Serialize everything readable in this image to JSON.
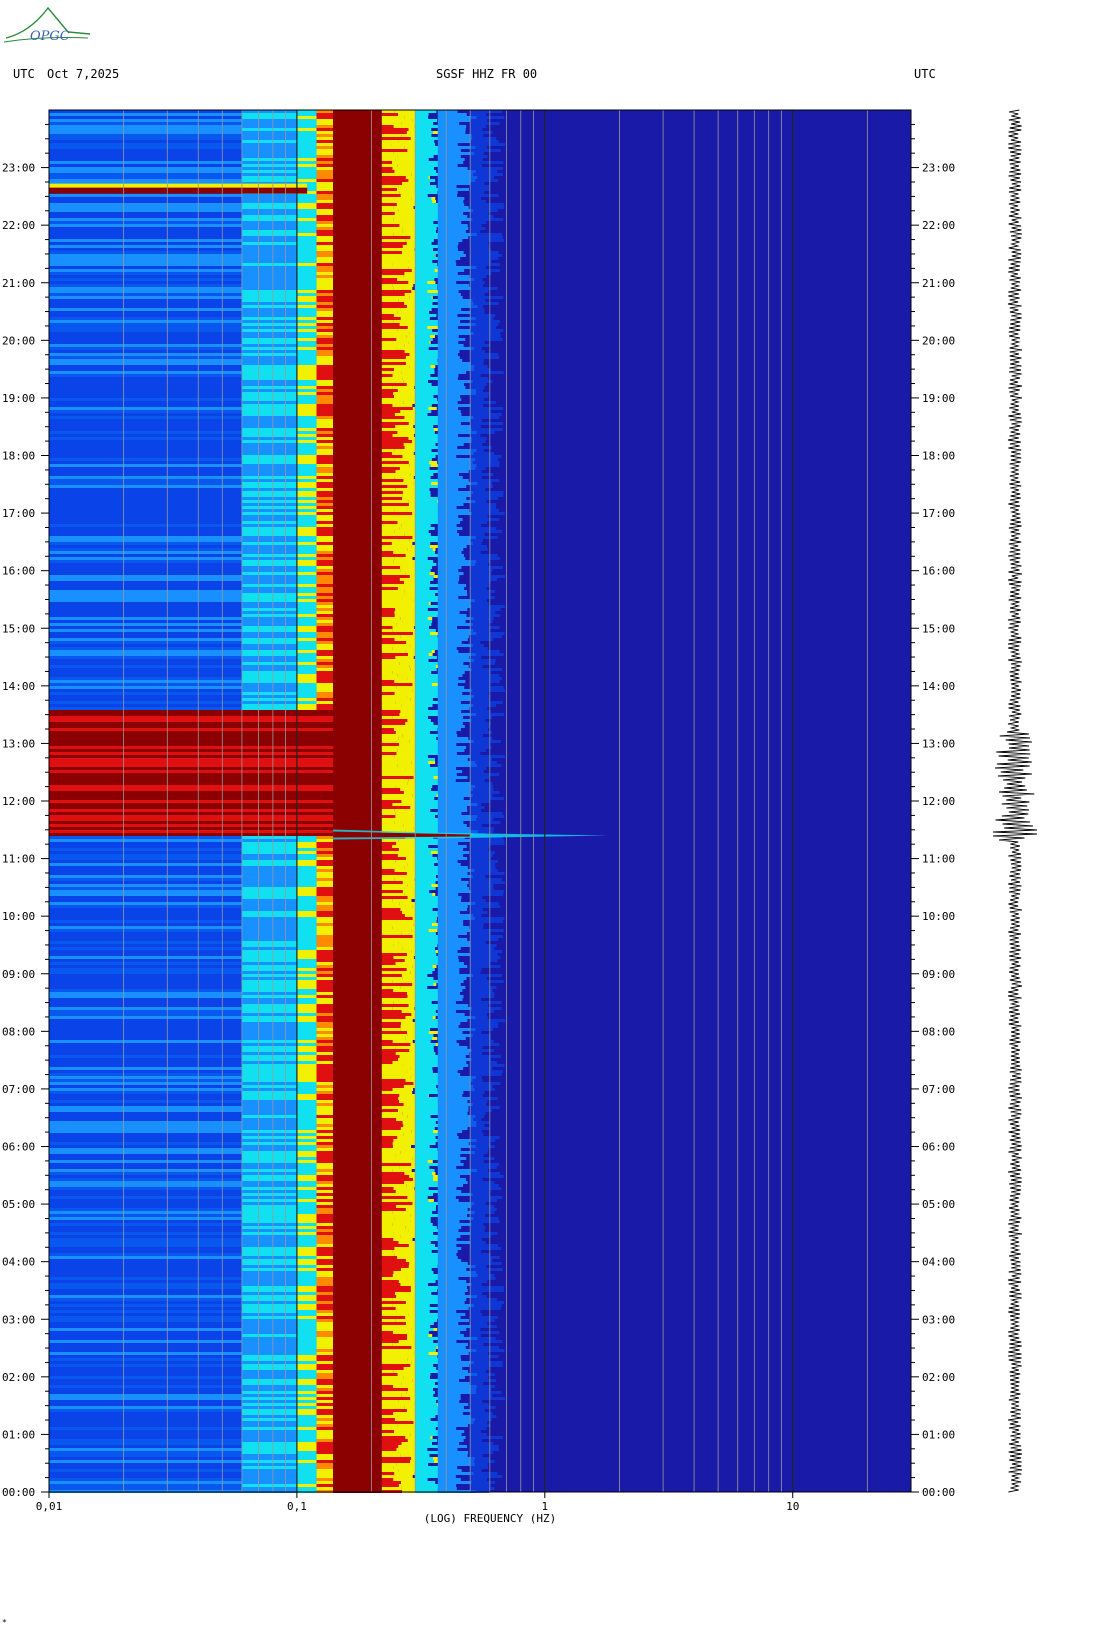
{
  "header": {
    "left_label": "UTC",
    "date": "Oct 7,2025",
    "station": "SGSF HHZ FR 00",
    "right_label": "UTC"
  },
  "logo": {
    "text": "OPGC"
  },
  "footer_mark": "*",
  "colors": {
    "background_blue": "#1a1aa8",
    "deep_red": "#8b0000",
    "red": "#e01010",
    "yellow": "#f0f000",
    "cyan": "#10e0f0",
    "light_blue": "#1890ff",
    "blue": "#0a44e8"
  },
  "chart_data": {
    "type": "heatmap",
    "title": "SGSF HHZ FR 00",
    "xlabel": "(LOG) FREQUENCY (HZ)",
    "ylabel": "UTC",
    "x_scale": "log",
    "x_range": [
      0.01,
      30
    ],
    "x_ticks": [
      {
        "value": 0.01,
        "label": "0,01"
      },
      {
        "value": 0.1,
        "label": "0,1"
      },
      {
        "value": 1,
        "label": "1"
      },
      {
        "value": 10,
        "label": "10"
      }
    ],
    "y_range_hours": [
      0,
      24
    ],
    "y_ticks": [
      "00:00",
      "01:00",
      "02:00",
      "03:00",
      "04:00",
      "05:00",
      "06:00",
      "07:00",
      "08:00",
      "09:00",
      "10:00",
      "11:00",
      "12:00",
      "13:00",
      "14:00",
      "15:00",
      "16:00",
      "17:00",
      "18:00",
      "19:00",
      "20:00",
      "21:00",
      "22:00",
      "23:00"
    ],
    "gridlines_hz": [
      0.02,
      0.03,
      0.04,
      0.05,
      0.06,
      0.07,
      0.08,
      0.09,
      0.1,
      0.2,
      0.3,
      0.4,
      0.5,
      0.6,
      0.7,
      0.8,
      0.9,
      1,
      2,
      3,
      4,
      5,
      6,
      7,
      8,
      9,
      10,
      20
    ],
    "microseism_band_hz": [
      0.14,
      0.22
    ],
    "event_hour_utc": 11.4,
    "event_energy_hours": [
      11.4,
      13.6
    ],
    "secondary_event_hour_utc": 22.6
  }
}
